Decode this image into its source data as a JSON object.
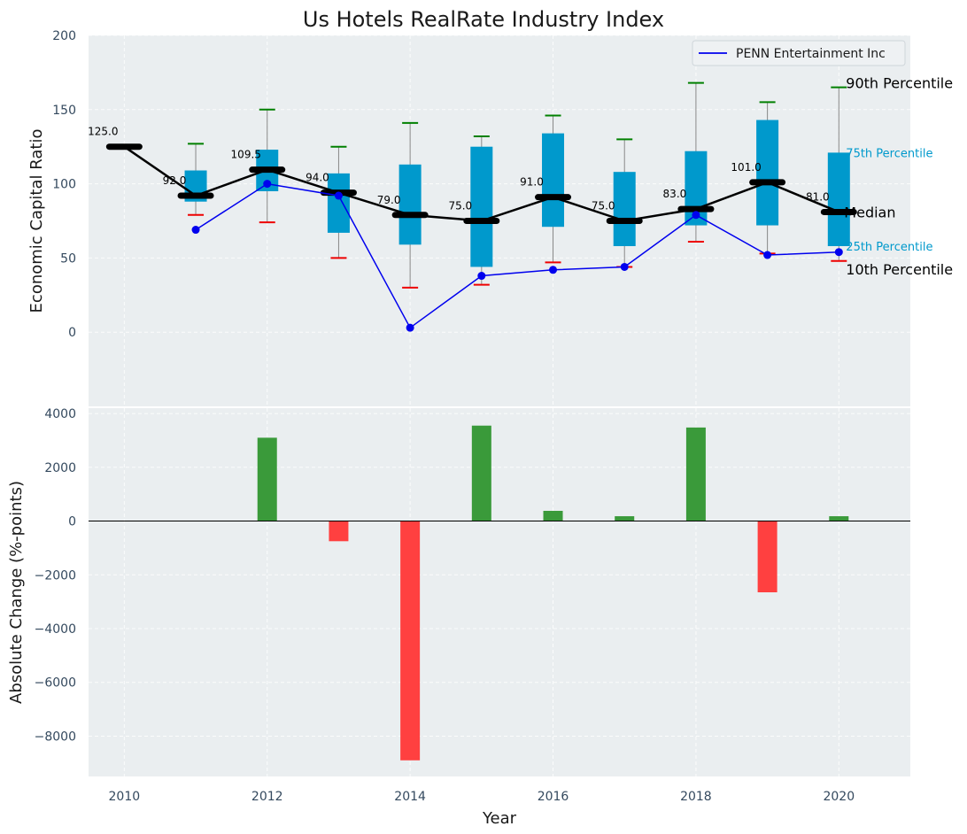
{
  "chart_data": [
    {
      "type": "box",
      "title": "Us Hotels RealRate Industry Index",
      "ylabel": "Economic Capital Ratio",
      "ylim": [
        -50,
        200
      ],
      "yticks": [
        0,
        50,
        100,
        150,
        200
      ],
      "xlim": [
        2009.5,
        2021
      ],
      "years": [
        2011,
        2012,
        2013,
        2014,
        2015,
        2016,
        2017,
        2018,
        2019,
        2020
      ],
      "p10": [
        79,
        74,
        50,
        30,
        32,
        47,
        44,
        61,
        53,
        48
      ],
      "p25": [
        88,
        95,
        67,
        59,
        44,
        71,
        58,
        72,
        72,
        58
      ],
      "p75": [
        109,
        123,
        107,
        113,
        125,
        134,
        108,
        122,
        143,
        121
      ],
      "p90": [
        127,
        150,
        125,
        141,
        132,
        146,
        130,
        168,
        155,
        165
      ],
      "median_series": {
        "years": [
          2010,
          2011,
          2012,
          2013,
          2014,
          2015,
          2016,
          2017,
          2018,
          2019,
          2020
        ],
        "values": [
          125.0,
          92.0,
          109.5,
          94.0,
          79.0,
          75.0,
          91.0,
          75.0,
          83.0,
          101.0,
          81.0
        ],
        "labels": [
          "125.0",
          "92.0",
          "109.5",
          "94.0",
          "79.0",
          "75.0",
          "91.0",
          "75.0",
          "83.0",
          "101.0",
          "81.0"
        ]
      },
      "company_series": {
        "name": "PENN Entertainment Inc",
        "years": [
          2011,
          2012,
          2013,
          2014,
          2015,
          2016,
          2017,
          2018,
          2019,
          2020
        ],
        "values": [
          69,
          100,
          92,
          3,
          38,
          42,
          44,
          79,
          52,
          54
        ]
      },
      "legend": {
        "label": "PENN Entertainment Inc",
        "position": "top-right"
      },
      "annotations": {
        "p90": "90th Percentile",
        "p75": "75th Percentile",
        "median": "Median",
        "p25": "25th Percentile",
        "p10": "10th Percentile"
      }
    },
    {
      "type": "bar",
      "xlabel": "Year",
      "ylabel": "Absolute Change (%-points)",
      "ylim": [
        -9500,
        4200
      ],
      "yticks": [
        -8000,
        -6000,
        -4000,
        -2000,
        0,
        2000,
        4000
      ],
      "xticks": [
        2010,
        2012,
        2014,
        2016,
        2018,
        2020
      ],
      "years": [
        2012,
        2013,
        2014,
        2015,
        2016,
        2017,
        2018,
        2019,
        2020
      ],
      "values": [
        3100,
        -750,
        -8900,
        3550,
        380,
        180,
        3480,
        -2650,
        180
      ]
    }
  ],
  "colors": {
    "panel_bg": "#eaeef0",
    "box": "#0099cc",
    "median": "#000000",
    "company": "#0000ee",
    "p90_cap": "#008000",
    "p10_cap": "#ee0000",
    "whisker": "#888888",
    "bar_pos": "#3a9a3a",
    "bar_neg": "#ff4040",
    "zero_line": "#000000"
  }
}
